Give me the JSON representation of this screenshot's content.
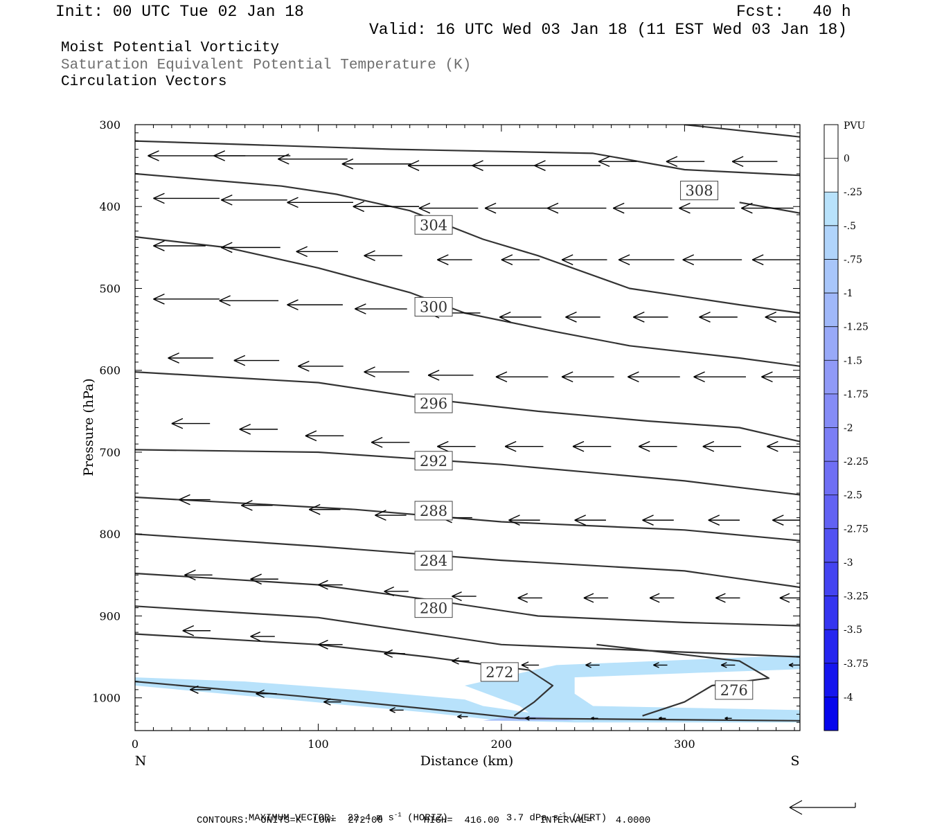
{
  "header": {
    "init": "Init: 00 UTC Tue 02 Jan 18",
    "fcst": "Fcst:   40 h",
    "valid": "Valid: 16 UTC Wed 03 Jan 18 (11 EST Wed 03 Jan 18)"
  },
  "fields": {
    "line1": "Moist Potential Vorticity",
    "line2": "Saturation Equivalent Potential Temperature (K)",
    "line3": "Circulation Vectors"
  },
  "footer": {
    "max_vector_label": "MAXIMUM VECTOR:",
    "horiz_value": "22.4 m s",
    "horiz_exp": "-1",
    "horiz_tag": "(HORIZ)",
    "vert_value": "3.7 dPa s",
    "vert_exp": "-1",
    "vert_tag": "(VERT)",
    "contours": "CONTOURS:  UNITS=K  LOW=  272.00       HIGH=  416.00       INTERVAL=    4.0000"
  },
  "colors": {
    "contour": "#333333",
    "vector": "#000000",
    "pv_shade": "#b8e2fb",
    "pv_shade2": "#a8c0f8"
  },
  "chart_data": {
    "type": "cross-section",
    "xlabel": "Distance (km)",
    "ylabel": "Pressure (hPa)",
    "xlim": [
      0,
      363
    ],
    "ylim": [
      1040,
      300
    ],
    "x_ticks": [
      0,
      100,
      200,
      300
    ],
    "y_ticks": [
      300,
      400,
      500,
      600,
      700,
      800,
      900,
      1000
    ],
    "x_end_labels": {
      "left": "N",
      "right": "S"
    },
    "contour_labels": [
      {
        "value": "308",
        "x": 308,
        "p": 380
      },
      {
        "value": "304",
        "x": 163,
        "p": 422
      },
      {
        "value": "300",
        "x": 163,
        "p": 522
      },
      {
        "value": "296",
        "x": 163,
        "p": 640
      },
      {
        "value": "292",
        "x": 163,
        "p": 710
      },
      {
        "value": "288",
        "x": 163,
        "p": 771
      },
      {
        "value": "284",
        "x": 163,
        "p": 832
      },
      {
        "value": "280",
        "x": 163,
        "p": 890
      },
      {
        "value": "272",
        "x": 199,
        "p": 968
      },
      {
        "value": "276",
        "x": 327,
        "p": 990
      }
    ],
    "contours": [
      [
        [
          0,
          320
        ],
        [
          140,
          330
        ],
        [
          250,
          335
        ],
        [
          300,
          355
        ],
        [
          363,
          362
        ]
      ],
      [
        [
          0,
          360
        ],
        [
          80,
          375
        ],
        [
          110,
          385
        ],
        [
          150,
          405
        ],
        [
          190,
          440
        ],
        [
          220,
          460
        ],
        [
          270,
          500
        ],
        [
          330,
          520
        ],
        [
          363,
          530
        ]
      ],
      [
        [
          0,
          437
        ],
        [
          50,
          450
        ],
        [
          100,
          475
        ],
        [
          150,
          505
        ],
        [
          180,
          530
        ],
        [
          230,
          553
        ],
        [
          270,
          570
        ],
        [
          330,
          585
        ],
        [
          363,
          595
        ]
      ],
      [
        [
          0,
          602
        ],
        [
          100,
          615
        ],
        [
          160,
          635
        ],
        [
          220,
          650
        ],
        [
          280,
          662
        ],
        [
          330,
          670
        ],
        [
          363,
          687
        ]
      ],
      [
        [
          0,
          697
        ],
        [
          100,
          700
        ],
        [
          200,
          715
        ],
        [
          300,
          735
        ],
        [
          363,
          752
        ]
      ],
      [
        [
          0,
          755
        ],
        [
          120,
          770
        ],
        [
          200,
          785
        ],
        [
          300,
          795
        ],
        [
          363,
          808
        ]
      ],
      [
        [
          0,
          800
        ],
        [
          100,
          815
        ],
        [
          200,
          832
        ],
        [
          300,
          845
        ],
        [
          363,
          865
        ]
      ],
      [
        [
          0,
          848
        ],
        [
          100,
          862
        ],
        [
          160,
          880
        ],
        [
          220,
          900
        ],
        [
          300,
          908
        ],
        [
          363,
          912
        ]
      ],
      [
        [
          0,
          888
        ],
        [
          100,
          902
        ],
        [
          200,
          935
        ],
        [
          363,
          950
        ]
      ],
      [
        [
          0,
          922
        ],
        [
          100,
          935
        ],
        [
          160,
          950
        ],
        [
          200,
          962
        ],
        [
          215,
          966
        ],
        [
          228,
          985
        ],
        [
          218,
          1005
        ],
        [
          207,
          1022
        ]
      ],
      [
        [
          252,
          935
        ],
        [
          330,
          955
        ],
        [
          346,
          976
        ],
        [
          315,
          985
        ],
        [
          300,
          1005
        ],
        [
          277,
          1022
        ]
      ],
      [
        [
          0,
          980
        ],
        [
          90,
          998
        ],
        [
          180,
          1018
        ],
        [
          210,
          1025
        ],
        [
          363,
          1028
        ]
      ],
      [
        [
          300,
          300
        ],
        [
          363,
          315
        ]
      ],
      [
        [
          330,
          395
        ],
        [
          363,
          408
        ]
      ]
    ],
    "pv_shaded": [
      {
        "level": "-0.25",
        "area": [
          [
            0,
            975
          ],
          [
            60,
            980
          ],
          [
            120,
            990
          ],
          [
            180,
            1002
          ],
          [
            190,
            1010
          ],
          [
            215,
            1018
          ],
          [
            210,
            1010
          ],
          [
            180,
            985
          ],
          [
            230,
            960
          ],
          [
            363,
            948
          ],
          [
            363,
            965
          ],
          [
            300,
            970
          ],
          [
            240,
            975
          ],
          [
            240,
            995
          ],
          [
            250,
            1010
          ],
          [
            363,
            1015
          ],
          [
            363,
            1030
          ],
          [
            240,
            1030
          ],
          [
            200,
            1028
          ],
          [
            160,
            1018
          ],
          [
            0,
            985
          ]
        ]
      }
    ],
    "colorbar": {
      "unit": "PVU",
      "levels": [
        "0",
        "-.25",
        "-.5",
        "-.75",
        "-1",
        "-1.25",
        "-1.5",
        "-1.75",
        "-2",
        "-2.25",
        "-2.5",
        "-2.75",
        "-3",
        "-3.25",
        "-3.5",
        "-3.75",
        "-4"
      ],
      "colors": [
        "#ffffff",
        "#ffffff",
        "#b8e2fb",
        "#b0d4fb",
        "#a8c6fa",
        "#a0b8f9",
        "#98a9f8",
        "#909af7",
        "#858cf6",
        "#7b7ef5",
        "#6f6ff4",
        "#6262f3",
        "#5252f2",
        "#4444f1",
        "#3535f0",
        "#2525ef",
        "#1515ee",
        "#0606ec"
      ]
    },
    "vectors": [
      {
        "x": 7,
        "p": 338,
        "u": -28
      },
      {
        "x": 43,
        "p": 338,
        "u": -22
      },
      {
        "x": 78,
        "p": 342,
        "u": -20
      },
      {
        "x": 113,
        "p": 348,
        "u": -20
      },
      {
        "x": 149,
        "p": 350,
        "u": -20
      },
      {
        "x": 184,
        "p": 350,
        "u": -19
      },
      {
        "x": 218,
        "p": 350,
        "u": -19
      },
      {
        "x": 253,
        "p": 345,
        "u": -11
      },
      {
        "x": 290,
        "p": 345,
        "u": -11
      },
      {
        "x": 326,
        "p": 345,
        "u": -13
      },
      {
        "x": 10,
        "p": 390,
        "u": -19
      },
      {
        "x": 47,
        "p": 392,
        "u": -19
      },
      {
        "x": 83,
        "p": 395,
        "u": -19
      },
      {
        "x": 119,
        "p": 400,
        "u": -19
      },
      {
        "x": 155,
        "p": 402,
        "u": -17
      },
      {
        "x": 191,
        "p": 402,
        "u": -18
      },
      {
        "x": 225,
        "p": 402,
        "u": -17
      },
      {
        "x": 261,
        "p": 402,
        "u": -17
      },
      {
        "x": 297,
        "p": 402,
        "u": -16
      },
      {
        "x": 331,
        "p": 402,
        "u": -15
      },
      {
        "x": 10,
        "p": 448,
        "u": -15
      },
      {
        "x": 47,
        "p": 450,
        "u": -17
      },
      {
        "x": 88,
        "p": 455,
        "u": -12
      },
      {
        "x": 125,
        "p": 460,
        "u": -11
      },
      {
        "x": 165,
        "p": 465,
        "u": -10
      },
      {
        "x": 200,
        "p": 465,
        "u": -11
      },
      {
        "x": 233,
        "p": 465,
        "u": -13
      },
      {
        "x": 264,
        "p": 465,
        "u": -16
      },
      {
        "x": 299,
        "p": 465,
        "u": -17
      },
      {
        "x": 337,
        "p": 465,
        "u": -17
      },
      {
        "x": 10,
        "p": 513,
        "u": -19
      },
      {
        "x": 46,
        "p": 515,
        "u": -17
      },
      {
        "x": 83,
        "p": 520,
        "u": -16
      },
      {
        "x": 120,
        "p": 525,
        "u": -15
      },
      {
        "x": 160,
        "p": 530,
        "u": -15
      },
      {
        "x": 199,
        "p": 535,
        "u": -12
      },
      {
        "x": 235,
        "p": 535,
        "u": -10
      },
      {
        "x": 272,
        "p": 535,
        "u": -10
      },
      {
        "x": 308,
        "p": 535,
        "u": -11
      },
      {
        "x": 344,
        "p": 535,
        "u": -11
      },
      {
        "x": 18,
        "p": 585,
        "u": -13
      },
      {
        "x": 54,
        "p": 588,
        "u": -13
      },
      {
        "x": 89,
        "p": 595,
        "u": -13
      },
      {
        "x": 125,
        "p": 602,
        "u": -13
      },
      {
        "x": 160,
        "p": 606,
        "u": -13
      },
      {
        "x": 197,
        "p": 608,
        "u": -15
      },
      {
        "x": 233,
        "p": 608,
        "u": -15
      },
      {
        "x": 269,
        "p": 608,
        "u": -15
      },
      {
        "x": 305,
        "p": 608,
        "u": -15
      },
      {
        "x": 342,
        "p": 608,
        "u": -14
      },
      {
        "x": 20,
        "p": 665,
        "u": -11
      },
      {
        "x": 57,
        "p": 672,
        "u": -11
      },
      {
        "x": 93,
        "p": 680,
        "u": -11
      },
      {
        "x": 129,
        "p": 688,
        "u": -11
      },
      {
        "x": 165,
        "p": 693,
        "u": -11
      },
      {
        "x": 202,
        "p": 693,
        "u": -11
      },
      {
        "x": 239,
        "p": 693,
        "u": -11
      },
      {
        "x": 275,
        "p": 693,
        "u": -11
      },
      {
        "x": 310,
        "p": 693,
        "u": -11
      },
      {
        "x": 345,
        "p": 693,
        "u": -11
      },
      {
        "x": 24,
        "p": 758,
        "u": -9
      },
      {
        "x": 58,
        "p": 765,
        "u": -9
      },
      {
        "x": 95,
        "p": 770,
        "u": -9
      },
      {
        "x": 131,
        "p": 777,
        "u": -9
      },
      {
        "x": 167,
        "p": 780,
        "u": -9
      },
      {
        "x": 204,
        "p": 783,
        "u": -9
      },
      {
        "x": 240,
        "p": 783,
        "u": -9
      },
      {
        "x": 277,
        "p": 783,
        "u": -9
      },
      {
        "x": 313,
        "p": 783,
        "u": -9
      },
      {
        "x": 348,
        "p": 783,
        "u": -9
      },
      {
        "x": 27,
        "p": 850,
        "u": -8
      },
      {
        "x": 63,
        "p": 855,
        "u": -8
      },
      {
        "x": 100,
        "p": 862,
        "u": -7
      },
      {
        "x": 136,
        "p": 870,
        "u": -7
      },
      {
        "x": 173,
        "p": 876,
        "u": -7
      },
      {
        "x": 209,
        "p": 878,
        "u": -7
      },
      {
        "x": 245,
        "p": 878,
        "u": -7
      },
      {
        "x": 281,
        "p": 878,
        "u": -7
      },
      {
        "x": 317,
        "p": 878,
        "u": -7
      },
      {
        "x": 352,
        "p": 878,
        "u": -7
      },
      {
        "x": 26,
        "p": 918,
        "u": -8
      },
      {
        "x": 63,
        "p": 925,
        "u": -7
      },
      {
        "x": 100,
        "p": 935,
        "u": -7
      },
      {
        "x": 136,
        "p": 946,
        "u": -6
      },
      {
        "x": 173,
        "p": 955,
        "u": -5
      },
      {
        "x": 211,
        "p": 960,
        "u": -5
      },
      {
        "x": 246,
        "p": 960,
        "u": -4
      },
      {
        "x": 283,
        "p": 960,
        "u": -4
      },
      {
        "x": 320,
        "p": 960,
        "u": -4
      },
      {
        "x": 357,
        "p": 960,
        "u": -3
      },
      {
        "x": 30,
        "p": 990,
        "u": -6
      },
      {
        "x": 66,
        "p": 995,
        "u": -6
      },
      {
        "x": 103,
        "p": 1005,
        "u": -5
      },
      {
        "x": 139,
        "p": 1015,
        "u": -4
      },
      {
        "x": 176,
        "p": 1023,
        "u": -3
      },
      {
        "x": 213,
        "p": 1025,
        "u": -3
      },
      {
        "x": 249,
        "p": 1025,
        "u": -2
      },
      {
        "x": 286,
        "p": 1025,
        "u": -2
      },
      {
        "x": 322,
        "p": 1025,
        "u": -2
      }
    ]
  }
}
